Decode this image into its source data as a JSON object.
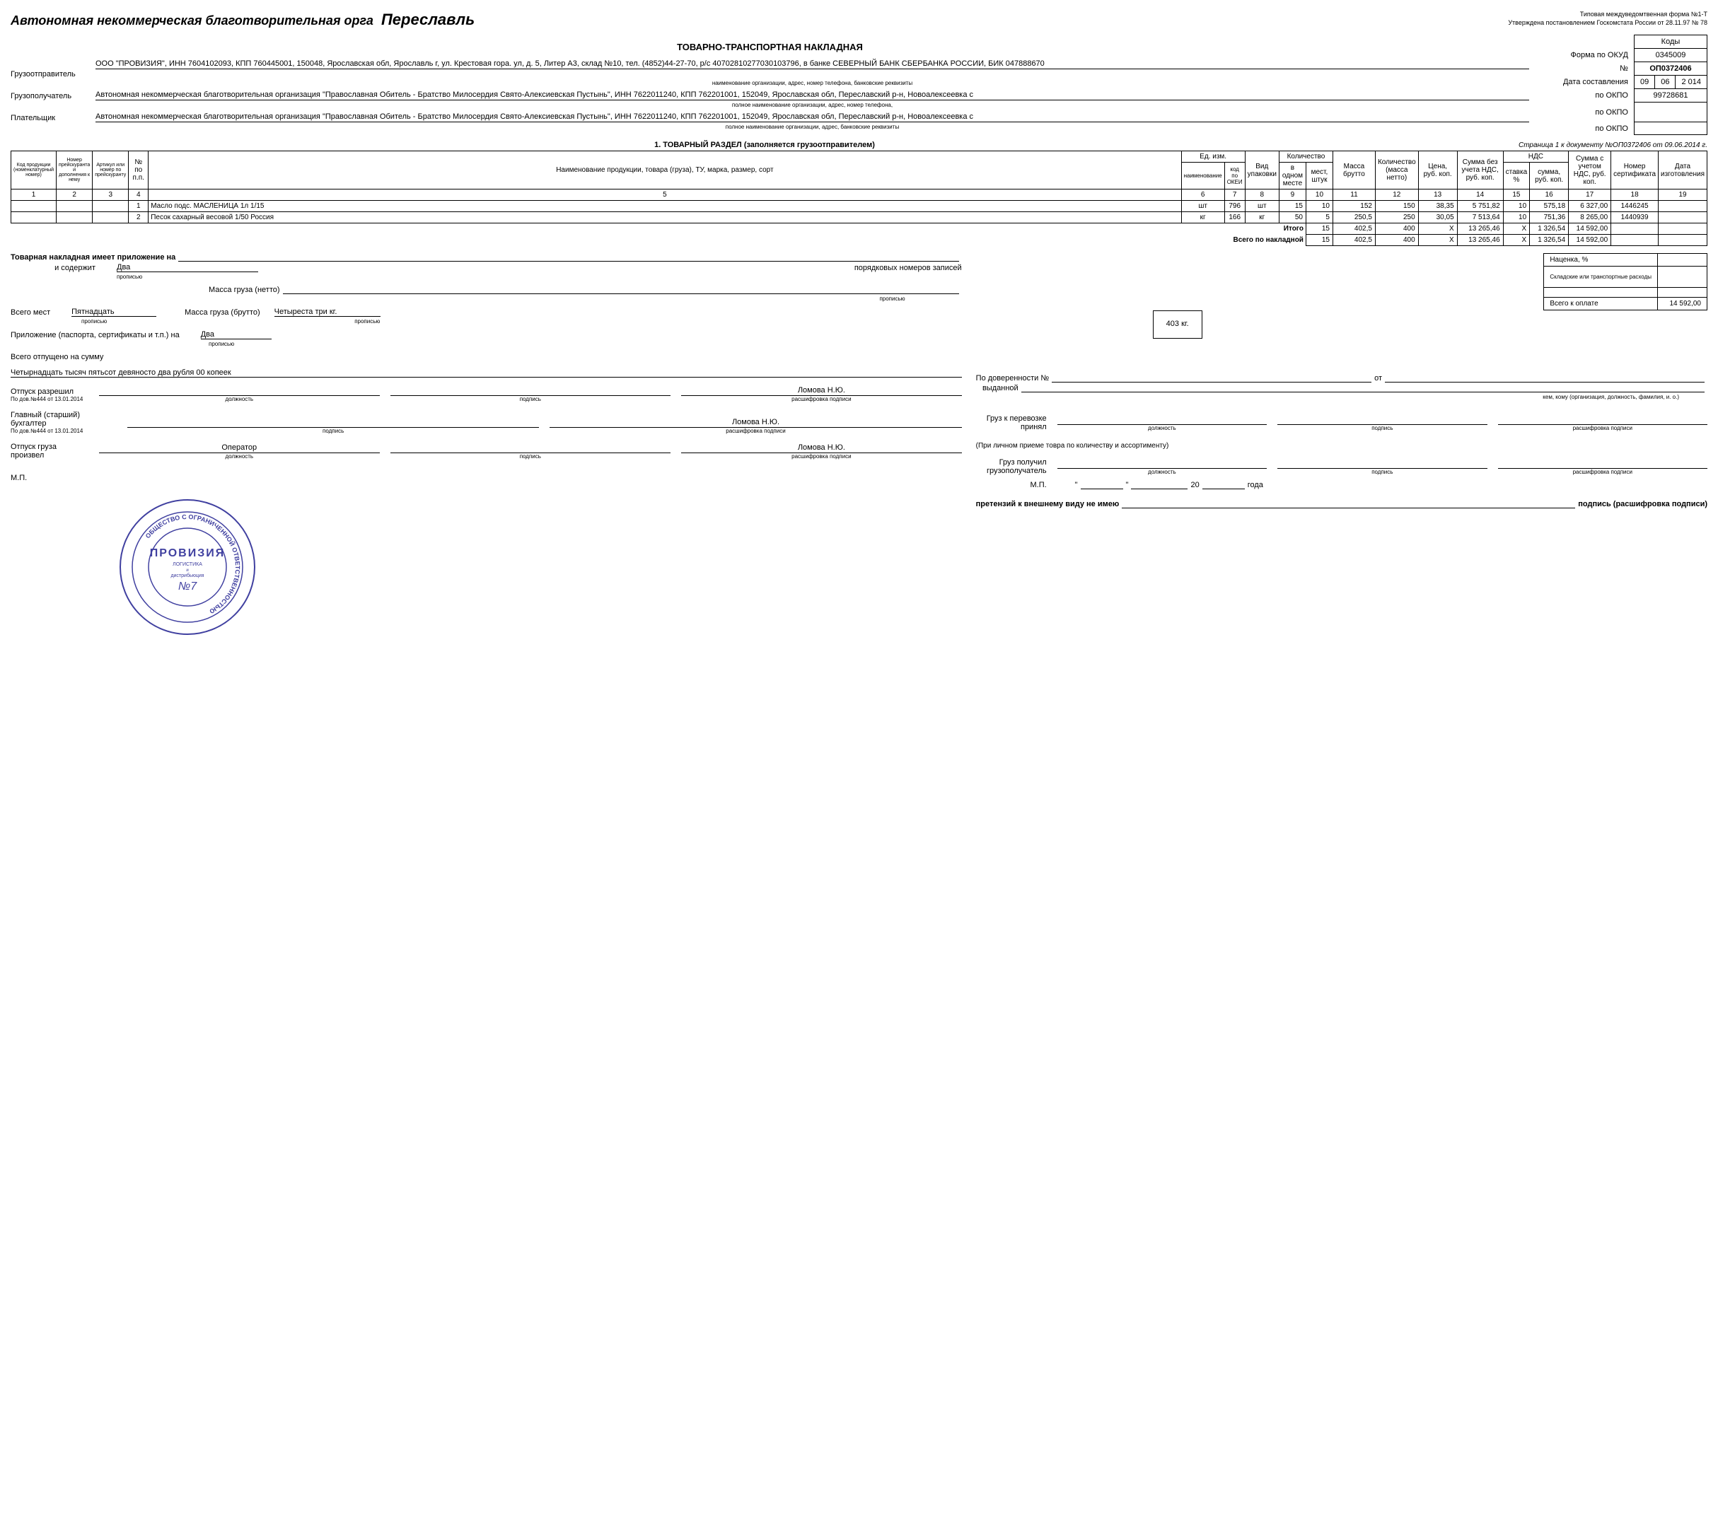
{
  "header": {
    "org_title": "Автономная некоммерческая благотворительная орга",
    "org_city": "Переславль",
    "form_info_1": "Типовая междуведомтвенная форма №1-Т",
    "form_info_2": "Утверждена постановлением Госкомстата России от 28.11.97 № 78"
  },
  "codes": {
    "kody_label": "Коды",
    "okud_label": "Форма по ОКУД",
    "okud_value": "0345009",
    "num_label": "№",
    "doc_number": "ОП0372406",
    "date_label": "Дата составления",
    "date_day": "09",
    "date_month": "06",
    "date_year": "2 014",
    "okpo_label": "по ОКПО",
    "okpo_1": "99728681",
    "okpo_2": "",
    "okpo_3": ""
  },
  "doc_title": "ТОВАРНО-ТРАНСПОРТНАЯ НАКЛАДНАЯ",
  "parties": {
    "sender_label": "Грузоотправитель",
    "sender_text": "ООО \"ПРОВИЗИЯ\", ИНН 7604102093, КПП 760445001, 150048, Ярославская обл, Ярославль г, ул. Крестовая гора. ул, д. 5, Литер А3, склад №10, тел. (4852)44-27-70, р/с 40702810277030103796, в банке СЕВЕРНЫЙ БАНК СБЕРБАНКА РОССИИ, БИК 047888670",
    "sender_sub": "наименование организации, адрес, номер телефона, банковские реквизиты",
    "receiver_label": "Грузополучатель",
    "receiver_text": "Автономная некоммерческая благотворительная организация \"Православная Обитель - Братство Милосердия Свято-Алексиевская Пустынь\", ИНН 7622011240, КПП 762201001, 152049, Ярославская обл, Переславский р-н, Новоалексеевка с",
    "receiver_sub": "полное наименование организации, адрес, номер телефона,",
    "payer_label": "Плательщик",
    "payer_text": "Автономная некоммерческая благотворительная организация \"Православная Обитель - Братство Милосердия Свято-Алексиевская Пустынь\", ИНН 7622011240, КПП 762201001, 152049, Ярославская обл, Переславский р-н, Новоалексеевка с",
    "payer_sub": "полное наименование организации, адрес, банковские реквизиты"
  },
  "section1_title": "1. ТОВАРНЫЙ РАЗДЕЛ (заполняется грузоотправителем)",
  "page_info": "Страница 1 к документу №ОП0372406 от 09.06.2014 г.",
  "table": {
    "headers": {
      "c1": "Код продукции (номенклатурный номер)",
      "c2": "Номер прейскуранта и дополнения к нему",
      "c3": "Артикул или номер по прейскуранту",
      "c4": "№ по п.п.",
      "c5": "Наименование продукции, товара (груза), ТУ, марка, размер, сорт",
      "c6_group": "Ед. изм.",
      "c6": "наименование",
      "c7": "код по ОКЕИ",
      "c8": "Вид упаковки",
      "c9_group": "Количество",
      "c9": "в одном месте",
      "c10": "мест, штук",
      "c11": "Масса брутто",
      "c12": "Количество (масса нетто)",
      "c13": "Цена, руб. коп.",
      "c14": "Сумма без учета НДС, руб. коп.",
      "c15_group": "НДС",
      "c15": "ставка %",
      "c16": "сумма, руб. коп.",
      "c17": "Сумма с учетом НДС, руб. коп.",
      "c18": "Номер сертификата",
      "c19": "Дата изготовления"
    },
    "col_nums": [
      "1",
      "2",
      "3",
      "4",
      "5",
      "6",
      "7",
      "8",
      "9",
      "10",
      "11",
      "12",
      "13",
      "14",
      "15",
      "16",
      "17",
      "18",
      "19"
    ],
    "rows": [
      {
        "n": "1",
        "name": "Масло подс. МАСЛЕНИЦА 1л  1/15",
        "unit": "шт",
        "okei": "796",
        "pack": "шт",
        "in_one": "15",
        "places": "10",
        "brutto": "152",
        "netto": "150",
        "price": "38,35",
        "sum_no_vat": "5 751,82",
        "vat_rate": "10",
        "vat_sum": "575,18",
        "sum_vat": "6 327,00",
        "cert": "1446245",
        "date": ""
      },
      {
        "n": "2",
        "name": "Песок сахарный весовой 1/50 Россия",
        "unit": "кг",
        "okei": "166",
        "pack": "кг",
        "in_one": "50",
        "places": "5",
        "brutto": "250,5",
        "netto": "250",
        "price": "30,05",
        "sum_no_vat": "7 513,64",
        "vat_rate": "10",
        "vat_sum": "751,36",
        "sum_vat": "8 265,00",
        "cert": "1440939",
        "date": ""
      }
    ],
    "totals": {
      "itogo_label": "Итого",
      "itogo": {
        "places": "15",
        "brutto": "402,5",
        "netto": "400",
        "price": "Х",
        "sum_no_vat": "13 265,46",
        "vat_rate": "Х",
        "vat_sum": "1 326,54",
        "sum_vat": "14 592,00"
      },
      "vsego_label": "Всего по накладной",
      "vsego": {
        "places": "15",
        "brutto": "402,5",
        "netto": "400",
        "price": "Х",
        "sum_no_vat": "13 265,46",
        "vat_rate": "Х",
        "vat_sum": "1 326,54",
        "sum_vat": "14 592,00"
      }
    }
  },
  "footer": {
    "attach_label": "Товарная накладная имеет приложение на",
    "contains_label": "и содержит",
    "contains_value": "Два",
    "records_label": "порядковых номеров записей",
    "mass_netto_label": "Масса груза (нетто)",
    "mass_brutto_label": "Масса груза (брутто)",
    "mass_brutto_text": "Четыреста три  кг.",
    "mass_brutto_value": "403 кг.",
    "places_label": "Всего мест",
    "places_value": "Пятнадцать",
    "attach_docs_label": "Приложение (паспорта, сертификаты и т.п.) на",
    "attach_docs_value": "Два",
    "total_sum_label": "Всего отпущено на сумму",
    "total_sum_text": "Четырнадцать тысяч пятьсот девяносто два рубля 00 копеек",
    "propis": "прописью",
    "markup_label": "Наценка, %",
    "warehouse_label": "Складские или транспортные расходы",
    "total_pay_label": "Всего к оплате",
    "total_pay_value": "14 592,00"
  },
  "signatures": {
    "release_auth": "Отпуск разрешил",
    "order_ref": "По дов.№444 от 13.01.2014",
    "accountant": "Главный (старший) бухгалтер",
    "release_done": "Отпуск груза произвел",
    "operator": "Оператор",
    "name": "Ломова Н.Ю.",
    "position_label": "должность",
    "signature_label": "подпись",
    "decode_label": "расшифровка подписи",
    "mp": "М.П.",
    "proxy_label": "По доверенности №",
    "issued_label": "выданной",
    "ot_label": "от",
    "proxy_sub": "кем, кому (организация, должность, фамилия, и. о.)",
    "cargo_transport": "Груз к перевозке принял",
    "personal_receipt": "(При личном приеме товра по количеству и ассортименту)",
    "cargo_received": "Груз получил грузополучатель",
    "date_quote": "\"",
    "year_20": "20",
    "year_label": "года",
    "claims_label": "претензий к внешнему виду не имею",
    "sign_decode": "подпись (расшифровка подписи)"
  },
  "stamp": {
    "outer_text": "ОБЩЕСТВО С ОГРАНИЧЕННОЙ ОТВЕТСТВЕННОСТЬЮ",
    "company": "ПРОВИЗИЯ",
    "sub1": "ЛОГИСТИКА",
    "sub2": "и",
    "sub3": "дистрибьюция",
    "num": "№7",
    "city": "ЯРОСЛАВЛЬ"
  }
}
